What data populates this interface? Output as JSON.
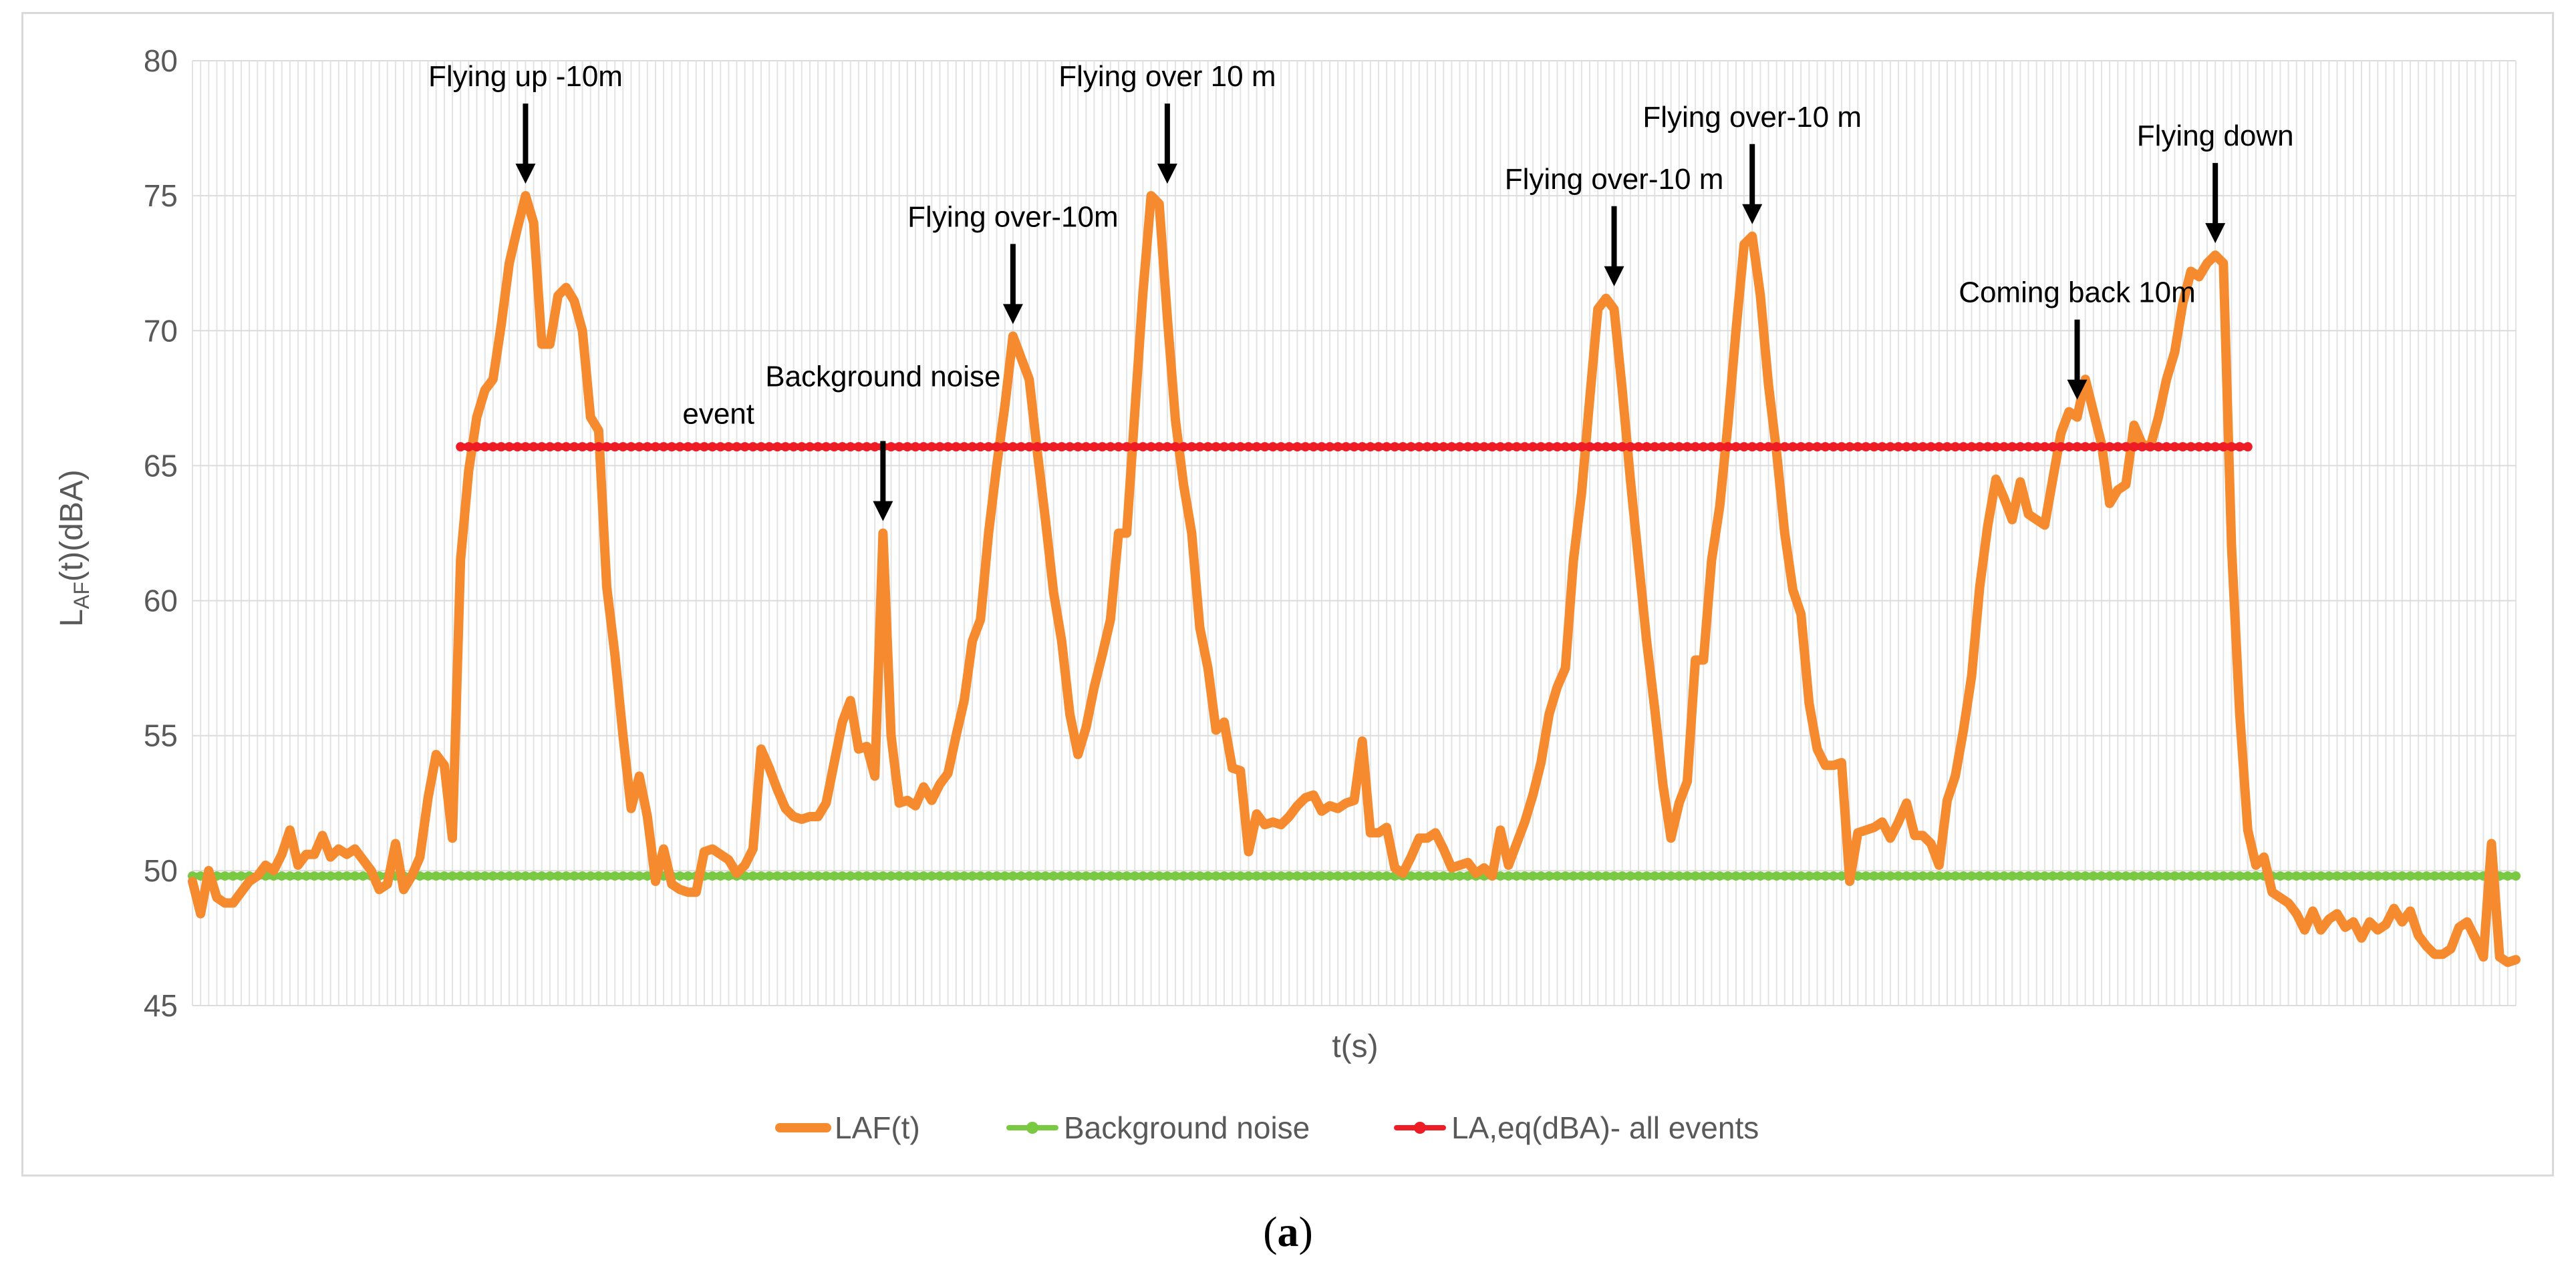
{
  "chart_data": {
    "type": "line",
    "title": "",
    "xlabel": "t(s)",
    "ylabel_main": "L",
    "ylabel_sub": "AF",
    "ylabel_rest": "(t)(dBA)",
    "ylim": [
      45,
      80
    ],
    "yticks": [
      45,
      50,
      55,
      60,
      65,
      70,
      75,
      80
    ],
    "x_points": 287,
    "grid": "vertical minor gridlines",
    "legend_position": "bottom",
    "series": [
      {
        "name": "LAF(t)",
        "color": "#f58a2e",
        "values": [
          49.6,
          48.4,
          50.0,
          49.0,
          48.8,
          48.8,
          49.2,
          49.6,
          49.8,
          50.2,
          50.0,
          50.6,
          51.5,
          50.2,
          50.6,
          50.6,
          51.3,
          50.5,
          50.8,
          50.6,
          50.8,
          50.4,
          50.0,
          49.3,
          49.5,
          51.0,
          49.3,
          49.8,
          50.5,
          52.7,
          54.3,
          53.9,
          51.2,
          61.5,
          64.8,
          66.8,
          67.8,
          68.2,
          70.2,
          72.5,
          73.8,
          75.0,
          74.0,
          69.5,
          69.5,
          71.3,
          71.6,
          71.1,
          70.0,
          66.8,
          66.3,
          60.5,
          58.0,
          55.0,
          52.3,
          53.5,
          52.0,
          49.6,
          50.8,
          49.5,
          49.3,
          49.2,
          49.2,
          50.7,
          50.8,
          50.6,
          50.4,
          49.9,
          50.2,
          50.8,
          54.5,
          53.8,
          53.0,
          52.3,
          52.0,
          51.9,
          52.0,
          52.0,
          52.5,
          54.0,
          55.5,
          56.3,
          54.5,
          54.6,
          53.5,
          62.5,
          55.0,
          52.5,
          52.6,
          52.4,
          53.1,
          52.6,
          53.2,
          53.6,
          55.0,
          56.3,
          58.5,
          59.3,
          62.5,
          65.0,
          67.2,
          69.8,
          69.0,
          68.2,
          65.5,
          63.0,
          60.3,
          58.5,
          55.8,
          54.3,
          55.3,
          56.8,
          58.0,
          59.3,
          62.5,
          62.5,
          67.0,
          71.4,
          75.0,
          74.7,
          70.5,
          66.7,
          64.3,
          62.5,
          59.0,
          57.5,
          55.2,
          55.5,
          53.8,
          53.7,
          50.7,
          52.1,
          51.7,
          51.8,
          51.7,
          52.0,
          52.4,
          52.7,
          52.8,
          52.2,
          52.4,
          52.3,
          52.5,
          52.6,
          54.8,
          51.4,
          51.4,
          51.6,
          50.1,
          49.9,
          50.5,
          51.2,
          51.2,
          51.4,
          50.8,
          50.1,
          50.2,
          50.3,
          49.9,
          50.1,
          49.8,
          51.5,
          50.2,
          51.0,
          51.8,
          52.8,
          54.0,
          55.8,
          56.8,
          57.5,
          61.5,
          64.0,
          67.5,
          70.8,
          71.2,
          70.8,
          67.8,
          64.5,
          61.5,
          58.5,
          56.0,
          53.2,
          51.2,
          52.5,
          53.3,
          57.8,
          57.8,
          61.5,
          63.5,
          66.5,
          70.0,
          73.2,
          73.5,
          71.3,
          68.0,
          65.5,
          62.5,
          60.4,
          59.5,
          56.2,
          54.5,
          53.9,
          53.9,
          54.0,
          49.6,
          51.4,
          51.5,
          51.6,
          51.8,
          51.2,
          51.8,
          52.5,
          51.3,
          51.3,
          51.0,
          50.2,
          52.6,
          53.5,
          55.2,
          57.2,
          60.5,
          62.8,
          64.5,
          63.8,
          63.0,
          64.4,
          63.2,
          63.0,
          62.8,
          64.5,
          66.2,
          67.0,
          66.8,
          68.2,
          67.0,
          65.8,
          63.6,
          64.1,
          64.3,
          66.5,
          65.8,
          65.7,
          66.8,
          68.2,
          69.2,
          71.0,
          72.2,
          72.0,
          72.5,
          72.8,
          72.5,
          62.0,
          55.8,
          51.5,
          50.2,
          50.5,
          49.2,
          49.0,
          48.8,
          48.4,
          47.8,
          48.5,
          47.8,
          48.2,
          48.4,
          47.9,
          48.1,
          47.5,
          48.1,
          47.8,
          48.0,
          48.6,
          48.1,
          48.5,
          47.6,
          47.2,
          46.9,
          46.9,
          47.1,
          47.9,
          48.1,
          47.5,
          46.8,
          51.0,
          46.8,
          46.6,
          46.7
        ]
      },
      {
        "name": "Background noise",
        "color": "#7ac943",
        "constant": 49.8,
        "x_range": [
          0,
          286
        ]
      },
      {
        "name": "LA,eq(dBA)- all events",
        "color": "#ee1c25",
        "constant": 65.7,
        "x_range": [
          33,
          253
        ]
      }
    ],
    "annotations": [
      {
        "id": "flying-up",
        "lines": [
          "Flying up -10m"
        ],
        "x": 41,
        "value": 75.0
      },
      {
        "id": "background-noise-event",
        "lines": [
          "Background  noise",
          "event"
        ],
        "x": 85,
        "value": 62.5
      },
      {
        "id": "flying-over-10m-a",
        "lines": [
          "Flying over-10m"
        ],
        "x": 101,
        "value": 69.8
      },
      {
        "id": "flying-over-10m-b",
        "lines": [
          "Flying over  10 m"
        ],
        "x": 120,
        "value": 75.0
      },
      {
        "id": "flying-over-10m-c",
        "lines": [
          "Flying over-10  m"
        ],
        "x": 175,
        "value": 71.2
      },
      {
        "id": "flying-over-10m-d",
        "lines": [
          "Flying over-10  m"
        ],
        "x": 192,
        "value": 73.5
      },
      {
        "id": "coming-back",
        "lines": [
          "Coming back 10m"
        ],
        "x": 232,
        "value": 67.0
      },
      {
        "id": "flying-down",
        "lines": [
          "Flying down"
        ],
        "x": 249,
        "value": 72.8
      }
    ]
  },
  "caption": {
    "open": "(",
    "letter": "a",
    "close": ")"
  }
}
